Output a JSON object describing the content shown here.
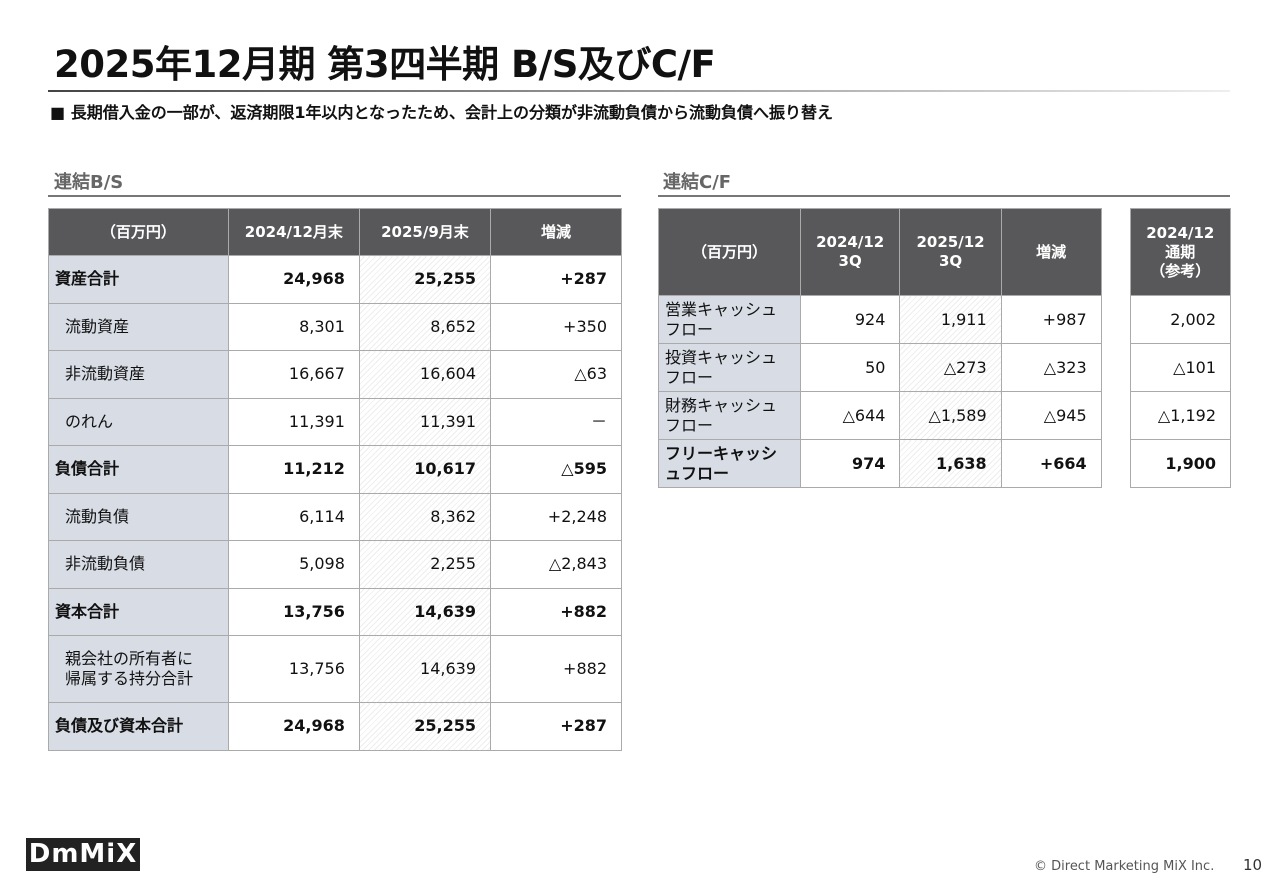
{
  "header": {
    "title": "2025年12月期 第3四半期 B/S及びC/F",
    "subtitle": "■ 長期借入金の一部が、返済期限1年以内となったため、会計上の分類が非流動負債から流動負債へ振り替え"
  },
  "bs": {
    "title": "連結B/S",
    "header": [
      "（百万円）",
      "2024/12月末",
      "2025/9月末",
      "増減"
    ],
    "rows": [
      [
        "資産合計",
        "24,968",
        "25,255",
        "+287"
      ],
      [
        "流動資産",
        "8,301",
        "8,652",
        "+350"
      ],
      [
        "非流動資産",
        "16,667",
        "16,604",
        "△63"
      ],
      [
        "のれん",
        "11,391",
        "11,391",
        "－"
      ],
      [
        "負債合計",
        "11,212",
        "10,617",
        "△595"
      ],
      [
        "流動負債",
        "6,114",
        "8,362",
        "+2,248"
      ],
      [
        "非流動負債",
        "5,098",
        "2,255",
        "△2,843"
      ],
      [
        "資本合計",
        "13,756",
        "14,639",
        "+882"
      ],
      [
        "親会社の所有者に\n帰属する持分合計",
        "13,756",
        "14,639",
        "+882"
      ],
      [
        "負債及び資本合計",
        "24,968",
        "25,255",
        "+287"
      ]
    ]
  },
  "cf": {
    "title": "連結C/F",
    "header": [
      "（百万円）",
      "2024/12\n3Q",
      "2025/12\n3Q",
      "増減",
      "2024/12\n通期\n（参考）"
    ],
    "rows": [
      [
        "営業キャッシュフロー",
        "924",
        "1,911",
        "+987",
        "2,002"
      ],
      [
        "投資キャッシュフロー",
        "50",
        "△273",
        "△323",
        "△101"
      ],
      [
        "財務キャッシュフロー",
        "△644",
        "△1,589",
        "△945",
        "△1,192"
      ],
      [
        "フリーキャッシュフロー",
        "974",
        "1,638",
        "+664",
        "1,900"
      ]
    ]
  },
  "footer": {
    "logo": "DmMiX",
    "copyright": "© Direct Marketing MiX Inc.",
    "page": "10"
  }
}
